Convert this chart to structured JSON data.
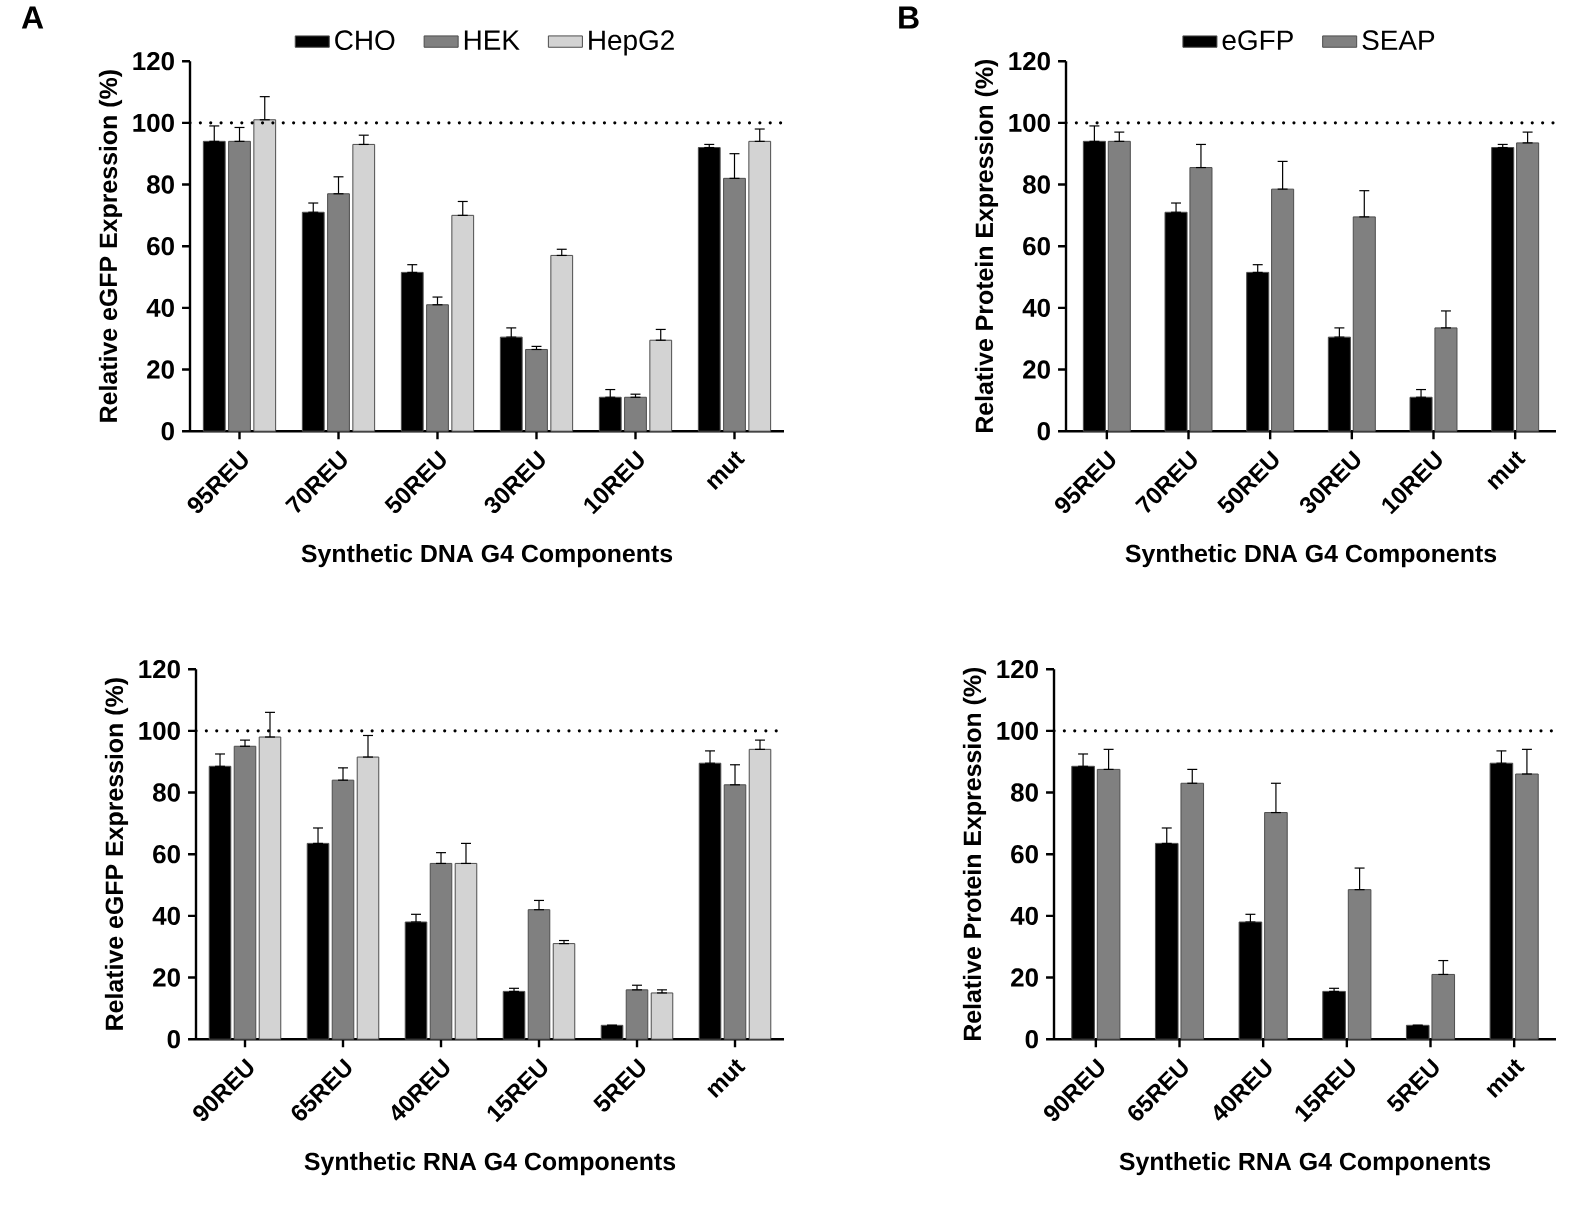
{
  "chart_data": [
    {
      "type": "bar",
      "categories": [
        "95REU",
        "70REU",
        "50REU",
        "30REU",
        "10REU",
        "mut"
      ],
      "xlabel": "Synthetic DNA G4 Components",
      "ylabel": "Relative eGFP Expression (%)",
      "ylim": [
        0,
        120
      ],
      "yticks": [
        0,
        20,
        40,
        60,
        80,
        100,
        120
      ],
      "legend": "top",
      "annotations": [
        "A"
      ],
      "ref_lines": [
        {
          "axis": "y",
          "value": 100,
          "line_style": "dotted",
          "color": "#000000"
        }
      ],
      "series": [
        {
          "name": "CHO",
          "color": "#000000",
          "values": [
            94,
            71,
            51.5,
            30.5,
            11,
            92
          ],
          "errors": [
            [
              94,
              99
            ],
            [
              71,
              74
            ],
            [
              51.5,
              54
            ],
            [
              30.5,
              33.5
            ],
            [
              11,
              13.5
            ],
            [
              92,
              93
            ]
          ]
        },
        {
          "name": "HEK",
          "color": "#808080",
          "values": [
            94,
            77,
            41,
            26.5,
            11,
            82
          ],
          "errors": [
            [
              94,
              98.5
            ],
            [
              77,
              82.5
            ],
            [
              41,
              43.5
            ],
            [
              26.5,
              27.5
            ],
            [
              11,
              12
            ],
            [
              82,
              90
            ]
          ]
        },
        {
          "name": "HepG2",
          "color": "#d3d3d3",
          "values": [
            101,
            93,
            70,
            57,
            29.5,
            94
          ],
          "errors": [
            [
              101,
              108.5
            ],
            [
              93,
              96
            ],
            [
              70,
              74.5
            ],
            [
              57,
              59
            ],
            [
              29.5,
              33
            ],
            [
              94,
              98
            ]
          ]
        }
      ]
    },
    {
      "type": "bar",
      "categories": [
        "95REU",
        "70REU",
        "50REU",
        "30REU",
        "10REU",
        "mut"
      ],
      "xlabel": "Synthetic DNA G4 Components",
      "ylabel": "Relative Protein Expression (%)",
      "ylim": [
        0,
        120
      ],
      "yticks": [
        0,
        20,
        40,
        60,
        80,
        100,
        120
      ],
      "legend": "top",
      "annotations": [
        "B"
      ],
      "ref_lines": [
        {
          "axis": "y",
          "value": 100,
          "line_style": "dotted",
          "color": "#000000"
        }
      ],
      "series": [
        {
          "name": "eGFP",
          "color": "#000000",
          "values": [
            94,
            71,
            51.5,
            30.5,
            11,
            92
          ],
          "errors": [
            [
              94,
              99
            ],
            [
              71,
              74
            ],
            [
              51.5,
              54
            ],
            [
              30.5,
              33.5
            ],
            [
              11,
              13.5
            ],
            [
              92,
              93
            ]
          ]
        },
        {
          "name": "SEAP",
          "color": "#808080",
          "values": [
            94,
            85.5,
            78.5,
            69.5,
            33.5,
            93.5
          ],
          "errors": [
            [
              94,
              97
            ],
            [
              85.5,
              93
            ],
            [
              78.5,
              87.5
            ],
            [
              69.5,
              78
            ],
            [
              33.5,
              39
            ],
            [
              93.5,
              97
            ]
          ]
        }
      ]
    },
    {
      "type": "bar",
      "categories": [
        "90REU",
        "65REU",
        "40REU",
        "15REU",
        "5REU",
        "mut"
      ],
      "xlabel": "Synthetic RNA G4 Components",
      "ylabel": "Relative eGFP Expression (%)",
      "ylim": [
        0,
        120
      ],
      "yticks": [
        0,
        20,
        40,
        60,
        80,
        100,
        120
      ],
      "ref_lines": [
        {
          "axis": "y",
          "value": 100,
          "line_style": "dotted",
          "color": "#000000"
        }
      ],
      "series": [
        {
          "color": "#000000",
          "values": [
            88.5,
            63.5,
            38,
            15.5,
            4.5,
            89.5
          ],
          "errors": [
            [
              88.5,
              92.5
            ],
            [
              63.5,
              68.5
            ],
            [
              38,
              40.5
            ],
            [
              15.5,
              16.5
            ],
            null,
            [
              89.5,
              93.5
            ]
          ]
        },
        {
          "color": "#808080",
          "values": [
            95,
            84,
            57,
            42,
            16,
            82.5
          ],
          "errors": [
            [
              95,
              97
            ],
            [
              84,
              88
            ],
            [
              57,
              60.5
            ],
            [
              42,
              45
            ],
            [
              16,
              17.5
            ],
            [
              82.5,
              89
            ]
          ]
        },
        {
          "color": "#d3d3d3",
          "values": [
            98,
            91.5,
            57,
            31,
            15,
            94
          ],
          "errors": [
            [
              98,
              106
            ],
            [
              91.5,
              98.5
            ],
            [
              57,
              63.5
            ],
            [
              31,
              32
            ],
            [
              15,
              16
            ],
            [
              94,
              97
            ]
          ]
        }
      ]
    },
    {
      "type": "bar",
      "categories": [
        "90REU",
        "65REU",
        "40REU",
        "15REU",
        "5REU",
        "mut"
      ],
      "xlabel": "Synthetic RNA G4 Components",
      "ylabel": "Relative Protein Expression (%)",
      "ylim": [
        0,
        120
      ],
      "yticks": [
        0,
        20,
        40,
        60,
        80,
        100,
        120
      ],
      "ref_lines": [
        {
          "axis": "y",
          "value": 100,
          "line_style": "dotted",
          "color": "#000000"
        }
      ],
      "series": [
        {
          "color": "#000000",
          "values": [
            88.5,
            63.5,
            38,
            15.5,
            4.5,
            89.5
          ],
          "errors": [
            [
              88.5,
              92.5
            ],
            [
              63.5,
              68.5
            ],
            [
              38,
              40.5
            ],
            [
              15.5,
              16.5
            ],
            null,
            [
              89.5,
              93.5
            ]
          ]
        },
        {
          "color": "#808080",
          "values": [
            87.5,
            83,
            73.5,
            48.5,
            21,
            86
          ],
          "errors": [
            [
              87.5,
              94
            ],
            [
              83,
              87.5
            ],
            [
              73.5,
              83
            ],
            [
              48.5,
              55.5
            ],
            [
              21,
              25.5
            ],
            [
              86,
              94
            ]
          ]
        }
      ]
    }
  ]
}
